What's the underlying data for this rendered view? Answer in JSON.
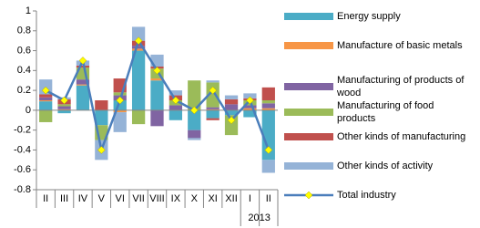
{
  "chart_data": {
    "type": "stacked-bar-line",
    "categories": [
      "II",
      "III",
      "IV",
      "V",
      "VI",
      "VII",
      "VIII",
      "IX",
      "X",
      "XI",
      "XII",
      "I",
      "II"
    ],
    "year_label": "2013",
    "ylim": [
      -0.8,
      1
    ],
    "yticks": [
      -0.8,
      -0.6,
      -0.4,
      -0.2,
      0,
      0.2,
      0.4,
      0.6,
      0.8,
      1
    ],
    "grid": false,
    "legend": "right",
    "series": [
      {
        "name": "Energy supply",
        "color": "#4bacc6",
        "values": [
          0.09,
          -0.03,
          0.25,
          -0.15,
          0.1,
          0.6,
          0.3,
          -0.1,
          -0.2,
          -0.08,
          -0.05,
          -0.07,
          -0.5
        ]
      },
      {
        "name": "Manufacture of basic metals",
        "color": "#f79646",
        "values": [
          0.01,
          0.01,
          0.01,
          0,
          -0.02,
          0.02,
          0.02,
          0,
          0,
          0.01,
          0,
          0.02,
          0.02
        ]
      },
      {
        "name": "Manufacturing of products of wood",
        "color": "#8064a2",
        "values": [
          0.03,
          0.03,
          0.05,
          0,
          0.05,
          0.03,
          -0.16,
          0.05,
          -0.08,
          0.02,
          0.06,
          0.03,
          0.05
        ]
      },
      {
        "name": "Manufacturing of food products",
        "color": "#9bbb59",
        "values": [
          -0.12,
          0.02,
          0.12,
          -0.15,
          0.03,
          -0.14,
          0.1,
          0.05,
          0.3,
          0.25,
          -0.2,
          0.05,
          0.03
        ]
      },
      {
        "name": "Other kinds of manufacturing",
        "color": "#c0504d",
        "values": [
          0.03,
          0.05,
          0.02,
          0.1,
          0.14,
          0.05,
          0.02,
          0.05,
          0,
          -0.02,
          0.05,
          0.02,
          0.13
        ]
      },
      {
        "name": "Other kinds of activity",
        "color": "#95b3d7",
        "values": [
          0.15,
          0.02,
          0.05,
          -0.2,
          -0.2,
          0.14,
          0.12,
          0.05,
          -0.02,
          0.02,
          0.04,
          0.05,
          -0.13
        ]
      },
      {
        "name": "Total industry",
        "type": "line",
        "color": "#4a7ebb",
        "marker_color": "#ffff00",
        "values": [
          0.2,
          0.1,
          0.5,
          -0.4,
          0.1,
          0.7,
          0.4,
          0.1,
          0,
          0.2,
          -0.1,
          0.1,
          -0.4
        ]
      }
    ]
  }
}
